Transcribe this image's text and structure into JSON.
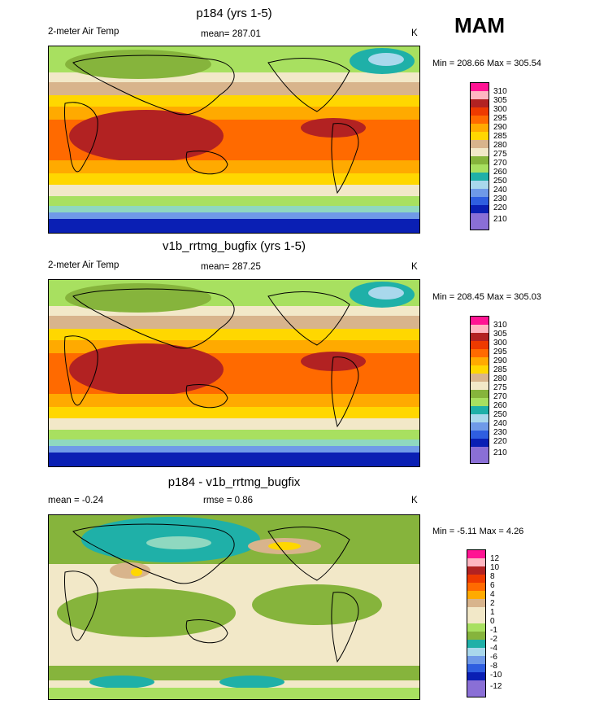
{
  "season": "MAM",
  "colors": {
    "temp": [
      "#8a6fd6",
      "#0a1fb4",
      "#2f5ee0",
      "#6f9ae8",
      "#a9d8ec",
      "#1fb0a8",
      "#8fd8c0",
      "#a8e060",
      "#86b43c",
      "#f2e8c8",
      "#d8b48c",
      "#ffd700",
      "#ffaa00",
      "#ff6a00",
      "#ee3a00",
      "#b22222",
      "#ffb6c1",
      "#ff1493"
    ],
    "diff": [
      "#8a6fd6",
      "#0a1fb4",
      "#2f5ee0",
      "#6f9ae8",
      "#a9d8ec",
      "#1fb0a8",
      "#8fd8c0",
      "#a8e060",
      "#86b43c",
      "#f2e8c8",
      "#d8b48c",
      "#ffd700",
      "#ffaa00",
      "#ff6a00",
      "#ee3a00",
      "#b22222",
      "#ffb6c1",
      "#ff1493"
    ]
  },
  "chart_data": [
    {
      "type": "heatmap",
      "title": "p184 (yrs 1-5)",
      "left_label": "2-meter Air Temp",
      "center_label": "mean= 287.01",
      "units": "K",
      "minmax": "Min = 208.66 Max = 305.54",
      "levels": [
        "310",
        "305",
        "300",
        "295",
        "290",
        "285",
        "280",
        "275",
        "270",
        "260",
        "250",
        "240",
        "230",
        "220",
        "210"
      ]
    },
    {
      "type": "heatmap",
      "title": "v1b_rrtmg_bugfix (yrs 1-5)",
      "left_label": "2-meter Air Temp",
      "center_label": "mean= 287.25",
      "units": "K",
      "minmax": "Min = 208.45 Max = 305.03",
      "levels": [
        "310",
        "305",
        "300",
        "295",
        "290",
        "285",
        "280",
        "275",
        "270",
        "260",
        "250",
        "240",
        "230",
        "220",
        "210"
      ]
    },
    {
      "type": "heatmap",
      "title": "p184 - v1b_rrtmg_bugfix",
      "left_label": "mean =  -0.24",
      "center_label": "rmse =   0.86",
      "units": "K",
      "minmax": "Min =  -5.11 Max =   4.26",
      "levels": [
        "12",
        "10",
        "8",
        "6",
        "4",
        "2",
        "1",
        "0",
        "-1",
        "-2",
        "-4",
        "-6",
        "-8",
        "-10",
        "-12"
      ]
    }
  ]
}
